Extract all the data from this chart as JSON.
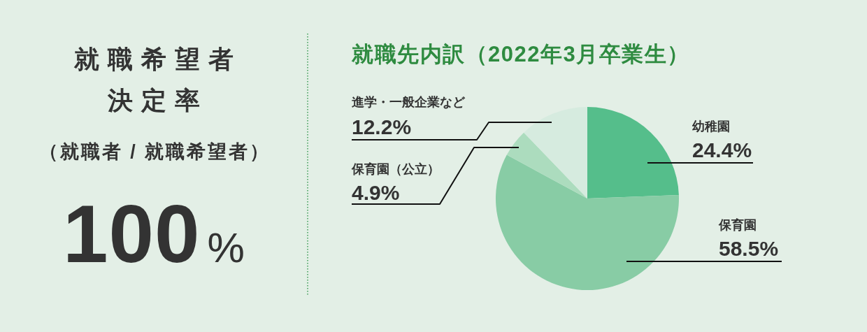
{
  "chart_data": [
    {
      "type": "other",
      "title": "就職希望者決定率",
      "subtitle": "（就職者 / 就職希望者）",
      "annotations": [
        "100%"
      ]
    },
    {
      "type": "pie",
      "title": "就職先内訳（2022年3月卒業生）",
      "categories": [
        "幼稚園",
        "保育園",
        "保育園（公立）",
        "進学・一般企業など"
      ],
      "values": [
        24.4,
        58.5,
        4.9,
        12.2
      ],
      "colors": [
        "#55be8b",
        "#88cca5",
        "#acdcbe",
        "#d6ebdf"
      ],
      "value_labels": [
        "24.4%",
        "58.5%",
        "4.9%",
        "12.2%"
      ]
    }
  ]
}
